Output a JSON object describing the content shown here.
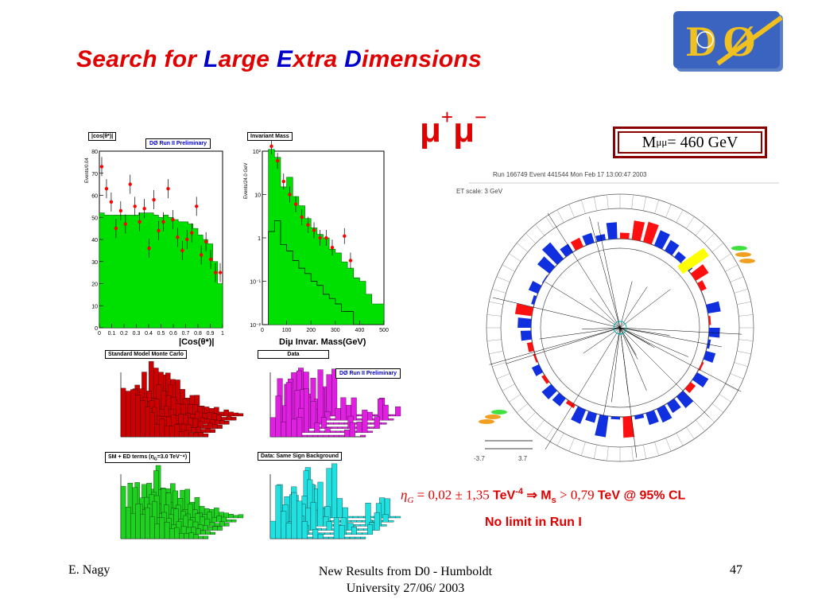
{
  "slide": {
    "title_parts": [
      {
        "text": "Search for ",
        "accent": false
      },
      {
        "text": "L",
        "accent": true
      },
      {
        "text": "arge ",
        "accent": false
      },
      {
        "text": "E",
        "accent": true
      },
      {
        "text": "xtra ",
        "accent": false
      },
      {
        "text": "D",
        "accent": true
      },
      {
        "text": "imensions",
        "accent": false
      }
    ],
    "channel": "μ",
    "channel_plus": "+",
    "channel_minus": "−",
    "mass_box": {
      "prefix": "M",
      "sub": "μμ",
      "suffix": "= 460 GeV"
    },
    "formula": {
      "eta": "η",
      "eta_sub": "G",
      "value": " = 0,02 ± 1,35 ",
      "unit": "TeV",
      "unit_exp": "-4",
      "implies": " ⇒ M",
      "ms_sub": "s",
      "limit": " > 0,79 ",
      "tail": "TeV @ 95% CL"
    },
    "conclusion": "No limit in Run I"
  },
  "plots": {
    "cos": {
      "title": "|cos(θ*)|",
      "prelim": "DØ Run II Preliminary",
      "ylabel": "Events/0.04",
      "xlabel": "|Cos(θ*)|",
      "yticks": [
        "0",
        "10",
        "20",
        "30",
        "40",
        "50",
        "60",
        "70",
        "80"
      ],
      "xticks": [
        "0",
        "0.1",
        "0.2",
        "0.3",
        "0.4",
        "0.5",
        "0.6",
        "0.7",
        "0.8",
        "0.9",
        "1"
      ]
    },
    "mass": {
      "title": "Invariant Mass",
      "ylabel": "Events/24.0 GeV",
      "xlabel": "Diμ Invar. Mass(GeV)",
      "yticks": [
        "10⁻²",
        "10⁻¹",
        "1",
        "10",
        "10²"
      ],
      "xticks": [
        "0",
        "100",
        "200",
        "300",
        "400",
        "500"
      ]
    },
    "lego_sm": {
      "title": "Standard Model Monte Carlo"
    },
    "lego_data": {
      "title": "Data",
      "prelim": "DØ Run II Preliminary"
    },
    "lego_ed": {
      "title": "SM + ED terms (η",
      "title_sub": "G",
      "title_tail": "=3.0 TeV⁻⁴)"
    },
    "lego_ss": {
      "title": "Data: Same Sign Background"
    }
  },
  "event_display": {
    "header": "Run 166749 Event 441544 Mon Feb 17 13:00:47 2003",
    "et_scale": "ET scale: 3 GeV",
    "left_tick": "-3.7",
    "right_tick": "3.7"
  },
  "footer": {
    "author": "E. Nagy",
    "center_line1": "New Results from D0 - Humboldt",
    "center_line2": "University  27/06/ 2003",
    "page": "47"
  },
  "colors": {
    "title_red": "#e00000",
    "title_blue": "#0000cc",
    "hist_green": "#00e000",
    "data_red": "#ff0000",
    "lego_red": "#cc0000",
    "lego_magenta": "#e020e0",
    "lego_green": "#20d020",
    "lego_cyan": "#20e0e0",
    "box_border": "#8b0000"
  }
}
